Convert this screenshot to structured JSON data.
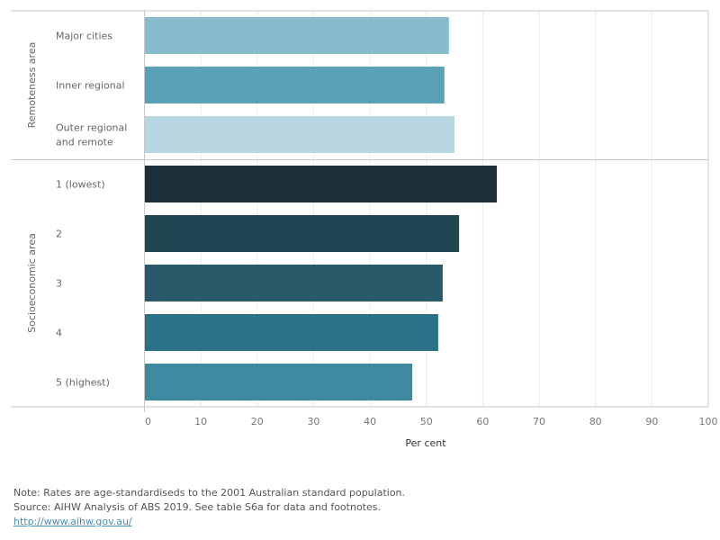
{
  "chart_data": {
    "type": "bar",
    "orientation": "horizontal",
    "xlabel": "Per cent",
    "xlim": [
      0,
      100
    ],
    "xticks": [
      "0",
      "10",
      "20",
      "30",
      "40",
      "50",
      "60",
      "70",
      "80",
      "90",
      "100"
    ],
    "grid": true,
    "groups": [
      {
        "name": "Remoteness area",
        "categories": [
          {
            "label": [
              "Major cities"
            ],
            "value": 54.0,
            "color": "#86bccb"
          },
          {
            "label": [
              "Inner regional"
            ],
            "value": 53.2,
            "color": "#5aa1b6"
          },
          {
            "label": [
              "Outer regional",
              "and remote"
            ],
            "value": 55.0,
            "color": "#b9d7e0"
          }
        ]
      },
      {
        "name": "Socioeconomic area",
        "categories": [
          {
            "label": [
              "1 (lowest)"
            ],
            "value": 62.5,
            "color": "#1b2f38"
          },
          {
            "label": [
              "2"
            ],
            "value": 55.8,
            "color": "#224552"
          },
          {
            "label": [
              "3"
            ],
            "value": 52.9,
            "color": "#2a5a6a"
          },
          {
            "label": [
              "4"
            ],
            "value": 52.1,
            "color": "#2a7287"
          },
          {
            "label": [
              "5 (highest)"
            ],
            "value": 47.5,
            "color": "#3d8aa1"
          }
        ]
      }
    ]
  },
  "notes": {
    "note": "Note: Rates are age-standardiseds to the 2001 Australian standard population.",
    "source": "Source: AIHW Analysis of ABS 2019. See table S6a for data and footnotes.",
    "link": "http://www.aihw.gov.au/"
  }
}
